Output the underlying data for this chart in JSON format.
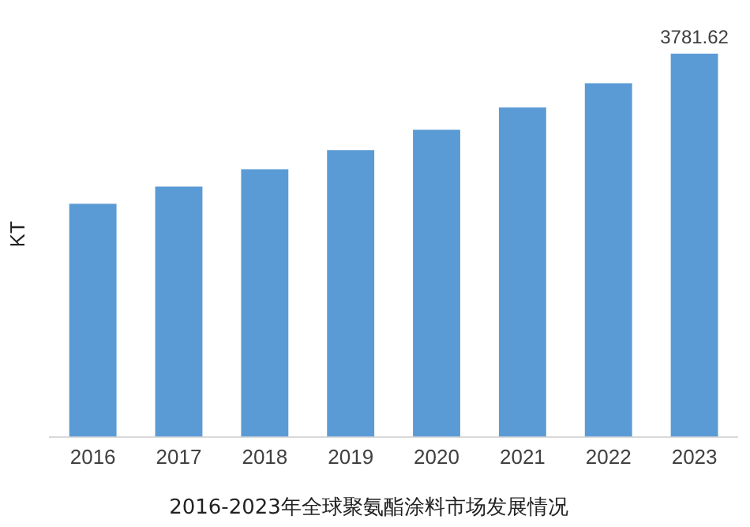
{
  "chart_data": {
    "type": "bar",
    "title": "2016-2023年全球聚氨酯涂料市场发展情况",
    "ylabel": "KT",
    "categories": [
      "2016",
      "2017",
      "2018",
      "2019",
      "2020",
      "2021",
      "2022",
      "2023"
    ],
    "series": [
      {
        "color": "#5b9bd5",
        "values": [
          2300,
          2470,
          2640,
          2830,
          3030,
          3250,
          3490,
          3781.62
        ],
        "value_labels": [
          null,
          null,
          null,
          null,
          null,
          null,
          null,
          "3781.62"
        ]
      }
    ],
    "tick_labels": "x",
    "grid": false,
    "legend": false
  }
}
